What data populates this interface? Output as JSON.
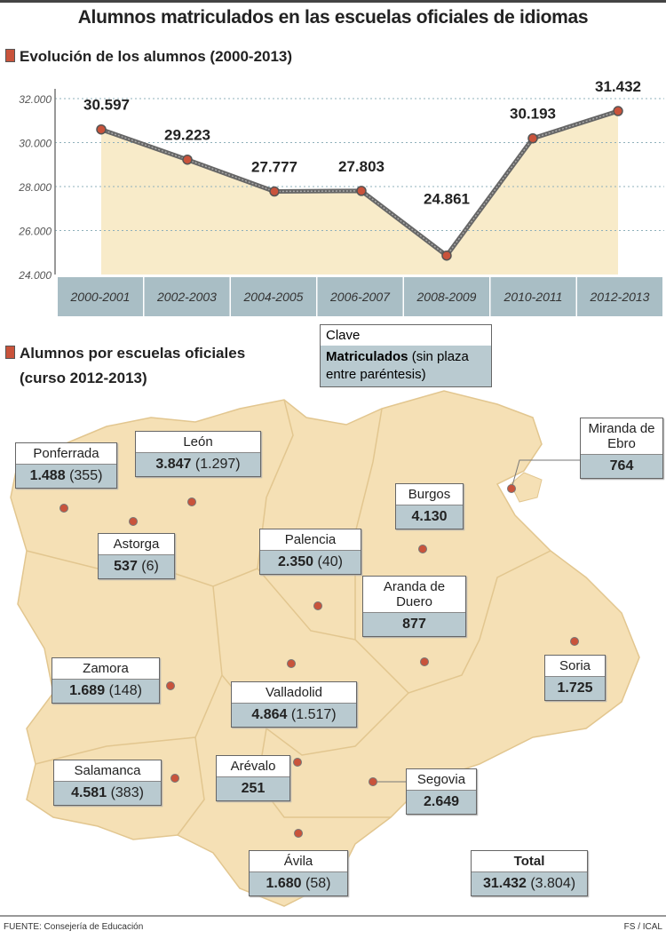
{
  "title": "Alumnos matriculados en las escuelas oficiales de idiomas",
  "chart_section_title": "Evolución de los alumnos (2000-2013)",
  "chart_data": {
    "type": "area",
    "title": "Evolución de los alumnos (2000-2013)",
    "categories": [
      "2000-2001",
      "2002-2003",
      "2004-2005",
      "2006-2007",
      "2008-2009",
      "2010-2011",
      "2012-2013"
    ],
    "values": [
      30597,
      29223,
      27777,
      27803,
      24861,
      30193,
      31432
    ],
    "data_labels": [
      "30.597",
      "29.223",
      "27.777",
      "27.803",
      "24.861",
      "30.193",
      "31.432"
    ],
    "yticks": [
      "24.000",
      "26.000",
      "28.000",
      "30.000",
      "32.000"
    ],
    "ylim": [
      24000,
      32000
    ],
    "grid": true,
    "colors": {
      "fill": "#f8ebc9",
      "line": "#666666",
      "marker": "#c9533b"
    }
  },
  "map_section": {
    "title_line1": "Alumnos por escuelas oficiales",
    "title_line2": "(curso 2012-2013)"
  },
  "legend": {
    "title": "Clave",
    "bold": "Matriculados",
    "rest": " (sin plaza entre paréntesis)"
  },
  "schools": [
    {
      "name": "Ponferrada",
      "enrolled": "1.488",
      "waiting": "(355)"
    },
    {
      "name": "León",
      "enrolled": "3.847",
      "waiting": "(1.297)"
    },
    {
      "name": "Astorga",
      "enrolled": "537",
      "waiting": "(6)"
    },
    {
      "name": "Palencia",
      "enrolled": "2.350",
      "waiting": "(40)"
    },
    {
      "name": "Burgos",
      "enrolled": "4.130",
      "waiting": ""
    },
    {
      "name": "Miranda de Ebro",
      "enrolled": "764",
      "waiting": ""
    },
    {
      "name": "Aranda de Duero",
      "enrolled": "877",
      "waiting": ""
    },
    {
      "name": "Zamora",
      "enrolled": "1.689",
      "waiting": "(148)"
    },
    {
      "name": "Valladolid",
      "enrolled": "4.864",
      "waiting": "(1.517)"
    },
    {
      "name": "Soria",
      "enrolled": "1.725",
      "waiting": ""
    },
    {
      "name": "Salamanca",
      "enrolled": "4.581",
      "waiting": "(383)"
    },
    {
      "name": "Arévalo",
      "enrolled": "251",
      "waiting": ""
    },
    {
      "name": "Segovia",
      "enrolled": "2.649",
      "waiting": ""
    },
    {
      "name": "Ávila",
      "enrolled": "1.680",
      "waiting": "(58)"
    },
    {
      "name": "Total",
      "enrolled": "31.432",
      "waiting": "(3.804)"
    }
  ],
  "footer": {
    "source": "FUENTE: Consejería de Educación",
    "credit": "FS / ICAL"
  }
}
